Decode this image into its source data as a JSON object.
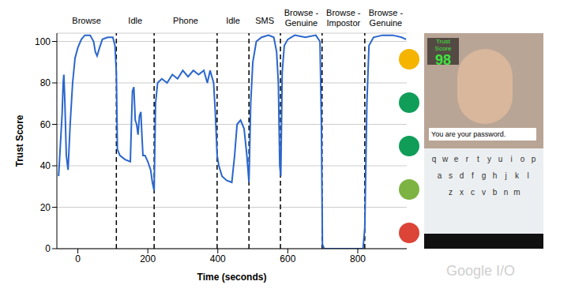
{
  "chart_data": {
    "type": "line",
    "x_label": "Time (seconds)",
    "y_label": "Trust Score",
    "xlim": [
      -60,
      940
    ],
    "xticks": [
      0,
      200,
      400,
      600,
      800
    ],
    "ylim": [
      0,
      104
    ],
    "yticks": [
      0,
      20,
      40,
      60,
      80,
      100
    ],
    "grid": true,
    "color": "#2a66cc",
    "x": [
      -55,
      -50,
      -45,
      -42,
      -40,
      -37,
      -33,
      -28,
      -22,
      -15,
      -8,
      0,
      10,
      20,
      35,
      45,
      50,
      55,
      62,
      70,
      85,
      100,
      106,
      110,
      113,
      120,
      135,
      150,
      153,
      156,
      160,
      164,
      168,
      172,
      176,
      180,
      183,
      186,
      192,
      200,
      208,
      213,
      218,
      222,
      228,
      240,
      255,
      270,
      285,
      300,
      315,
      330,
      345,
      360,
      370,
      378,
      388,
      393,
      398,
      403,
      412,
      425,
      440,
      448,
      455,
      465,
      475,
      483,
      489,
      494,
      500,
      510,
      525,
      545,
      560,
      568,
      573,
      577,
      580,
      584,
      590,
      600,
      620,
      650,
      680,
      692,
      696,
      699,
      704,
      760,
      815,
      820,
      826,
      832,
      845,
      870,
      900,
      925,
      938
    ],
    "values": [
      35,
      50,
      65,
      80,
      84,
      70,
      45,
      38,
      60,
      80,
      92,
      97,
      101,
      103,
      103,
      100,
      95,
      93,
      97,
      101,
      102,
      102,
      98,
      85,
      48,
      45,
      43,
      42,
      60,
      76,
      78,
      62,
      60,
      55,
      64,
      66,
      55,
      45,
      45,
      42,
      38,
      32,
      28,
      70,
      80,
      82,
      80,
      84,
      82,
      86,
      83,
      86,
      84,
      86,
      80,
      86,
      80,
      65,
      45,
      40,
      35,
      33,
      32,
      45,
      60,
      62,
      58,
      45,
      32,
      70,
      90,
      100,
      102,
      103,
      102,
      95,
      80,
      40,
      35,
      85,
      98,
      101,
      103,
      102,
      103,
      100,
      60,
      2,
      0,
      0,
      0,
      10,
      70,
      98,
      102,
      103,
      103,
      102,
      101
    ],
    "segments": [
      {
        "label": "Browse",
        "start": -60,
        "end": 110
      },
      {
        "label": "Idle",
        "start": 110,
        "end": 218
      },
      {
        "label": "Phone",
        "start": 218,
        "end": 398
      },
      {
        "label": "Idle",
        "start": 398,
        "end": 489
      },
      {
        "label": "SMS",
        "start": 489,
        "end": 579
      },
      {
        "label": "Browse - Genuine",
        "start": 579,
        "end": 698
      },
      {
        "label": "Browse - Impostor",
        "start": 698,
        "end": 820
      },
      {
        "label": "Browse - Genuine",
        "start": 820,
        "end": 940
      }
    ]
  },
  "phone": {
    "score_label": "Trust Score",
    "score": 98,
    "caption": "You are your password.",
    "keyboard": [
      [
        "q",
        "w",
        "e",
        "r",
        "t",
        "y",
        "u",
        "i",
        "o",
        "p"
      ],
      [
        "a",
        "s",
        "d",
        "f",
        "g",
        "h",
        "j",
        "k",
        "l"
      ],
      [
        "z",
        "x",
        "c",
        "v",
        "b",
        "n",
        "m"
      ]
    ]
  },
  "watermark": "Google I/O"
}
